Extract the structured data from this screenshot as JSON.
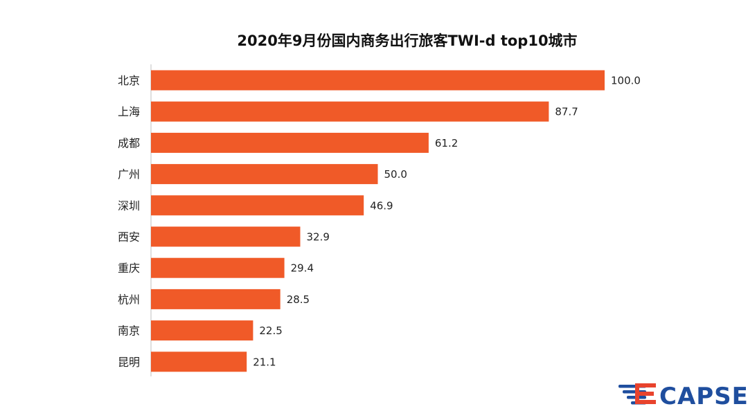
{
  "chart_data": {
    "type": "bar",
    "orientation": "horizontal",
    "title": "2020年9月份国内商务出行旅客TWI-d top10城市",
    "categories": [
      "北京",
      "上海",
      "成都",
      "广州",
      "深圳",
      "西安",
      "重庆",
      "杭州",
      "南京",
      "昆明"
    ],
    "values": [
      100.0,
      87.7,
      61.2,
      50.0,
      46.9,
      32.9,
      29.4,
      28.5,
      22.5,
      21.1
    ],
    "value_labels": [
      "100.0",
      "87.7",
      "61.2",
      "50.0",
      "46.9",
      "32.9",
      "29.4",
      "28.5",
      "22.5",
      "21.1"
    ],
    "xlim": [
      0,
      100
    ],
    "grid": false,
    "bar_color": "#F05A28"
  },
  "logo": {
    "text": "CAPSE",
    "color": "#1F4E9E",
    "accent_color": "#E8432D"
  }
}
